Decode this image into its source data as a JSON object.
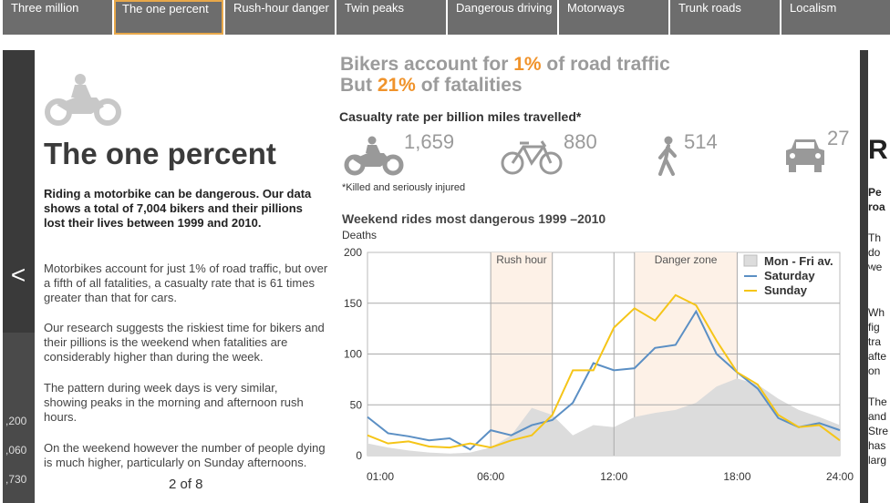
{
  "tabs": [
    {
      "label": "Three million",
      "active": false
    },
    {
      "label": "The one percent",
      "active": true
    },
    {
      "label": "Rush-hour danger",
      "active": false
    },
    {
      "label": "Twin peaks",
      "active": false
    },
    {
      "label": "Dangerous driving",
      "active": false
    },
    {
      "label": "Motorways",
      "active": false
    },
    {
      "label": "Trunk roads",
      "active": false
    },
    {
      "label": "Localism",
      "active": false
    }
  ],
  "nav": {
    "prev": "<",
    "next": ">"
  },
  "peek_left": [
    ",200",
    ",060",
    ",730"
  ],
  "peek_right": [
    "R",
    "Pe",
    "roa",
    "Th",
    "do",
    "we",
    "Wh",
    "fig",
    "tra",
    "afte",
    "on",
    "The",
    "and",
    "Stre",
    "has",
    "larg"
  ],
  "article": {
    "title": "The one percent",
    "lead": "Riding a motorbike can be dangerous. Our data shows a total of 7,004 bikers and their pillions lost their lives between 1999 and 2010.",
    "paragraphs": [
      "Motorbikes account for just 1% of road traffic, but over a fifth of all fatalities, a casualty rate that is 61 times greater than that for cars.",
      "Our research suggests the riskiest time for bikers and their pillions is the weekend when fatalities are considerably higher than during the week.",
      "The pattern during week days is very similar, showing peaks in the morning and afternoon rush hours.",
      "On the weekend however the number of people dying is much higher, particularly on Sunday afternoons."
    ],
    "pager": "2 of 8"
  },
  "headline": {
    "line1_pre": "Bikers account for ",
    "line1_hl": "1%",
    "line1_post": " of road traffic",
    "line2_pre": "But ",
    "line2_hl": "21%",
    "line2_post": " of fatalities"
  },
  "casualty": {
    "title": "Casualty rate per billion miles travelled*",
    "stats": [
      {
        "icon": "motorbike-icon",
        "value": "1,659"
      },
      {
        "icon": "bicycle-icon",
        "value": "880"
      },
      {
        "icon": "pedestrian-icon",
        "value": "514"
      },
      {
        "icon": "car-icon",
        "value": "27"
      }
    ],
    "note": "*Killed and seriously injured"
  },
  "colors": {
    "accent": "#f0932b",
    "tab_bg": "#6d6d6d",
    "saturday": "#5b8fc4",
    "sunday": "#f5c518",
    "weekday_area": "#dcdcdc",
    "zone": "#fdf1e7"
  },
  "chart_data": {
    "type": "line",
    "title": "Weekend rides most dangerous 1999 –2010",
    "ylabel": "Deaths",
    "xlabel": "",
    "ylim": [
      0,
      200
    ],
    "yticks": [
      0,
      50,
      100,
      150,
      200
    ],
    "xticks": [
      "01:00",
      "06:00",
      "12:00",
      "18:00",
      "24:00"
    ],
    "grid": true,
    "legend_position": "top-right",
    "annotations": [
      {
        "label": "Rush hour",
        "from_hour": 6,
        "to_hour": 9
      },
      {
        "label": "Danger zone",
        "from_hour": 13,
        "to_hour": 18
      }
    ],
    "x_hours": [
      0,
      1,
      2,
      3,
      4,
      5,
      6,
      7,
      8,
      9,
      10,
      11,
      12,
      13,
      14,
      15,
      16,
      17,
      18,
      19,
      20,
      21,
      22,
      23
    ],
    "series": [
      {
        "name": "Mon - Fri av.",
        "kind": "area",
        "values": [
          12,
          8,
          5,
          3,
          2,
          3,
          8,
          20,
          47,
          40,
          20,
          30,
          28,
          38,
          42,
          45,
          52,
          68,
          76,
          70,
          56,
          45,
          38,
          30
        ]
      },
      {
        "name": "Saturday",
        "kind": "line",
        "values": [
          38,
          22,
          19,
          15,
          17,
          6,
          25,
          20,
          30,
          35,
          52,
          91,
          84,
          86,
          106,
          109,
          142,
          100,
          82,
          66,
          37,
          28,
          32,
          25
        ]
      },
      {
        "name": "Sunday",
        "kind": "line",
        "values": [
          20,
          12,
          14,
          9,
          8,
          12,
          8,
          15,
          20,
          40,
          84,
          84,
          126,
          145,
          133,
          158,
          148,
          113,
          82,
          70,
          40,
          28,
          30,
          15
        ]
      }
    ]
  }
}
